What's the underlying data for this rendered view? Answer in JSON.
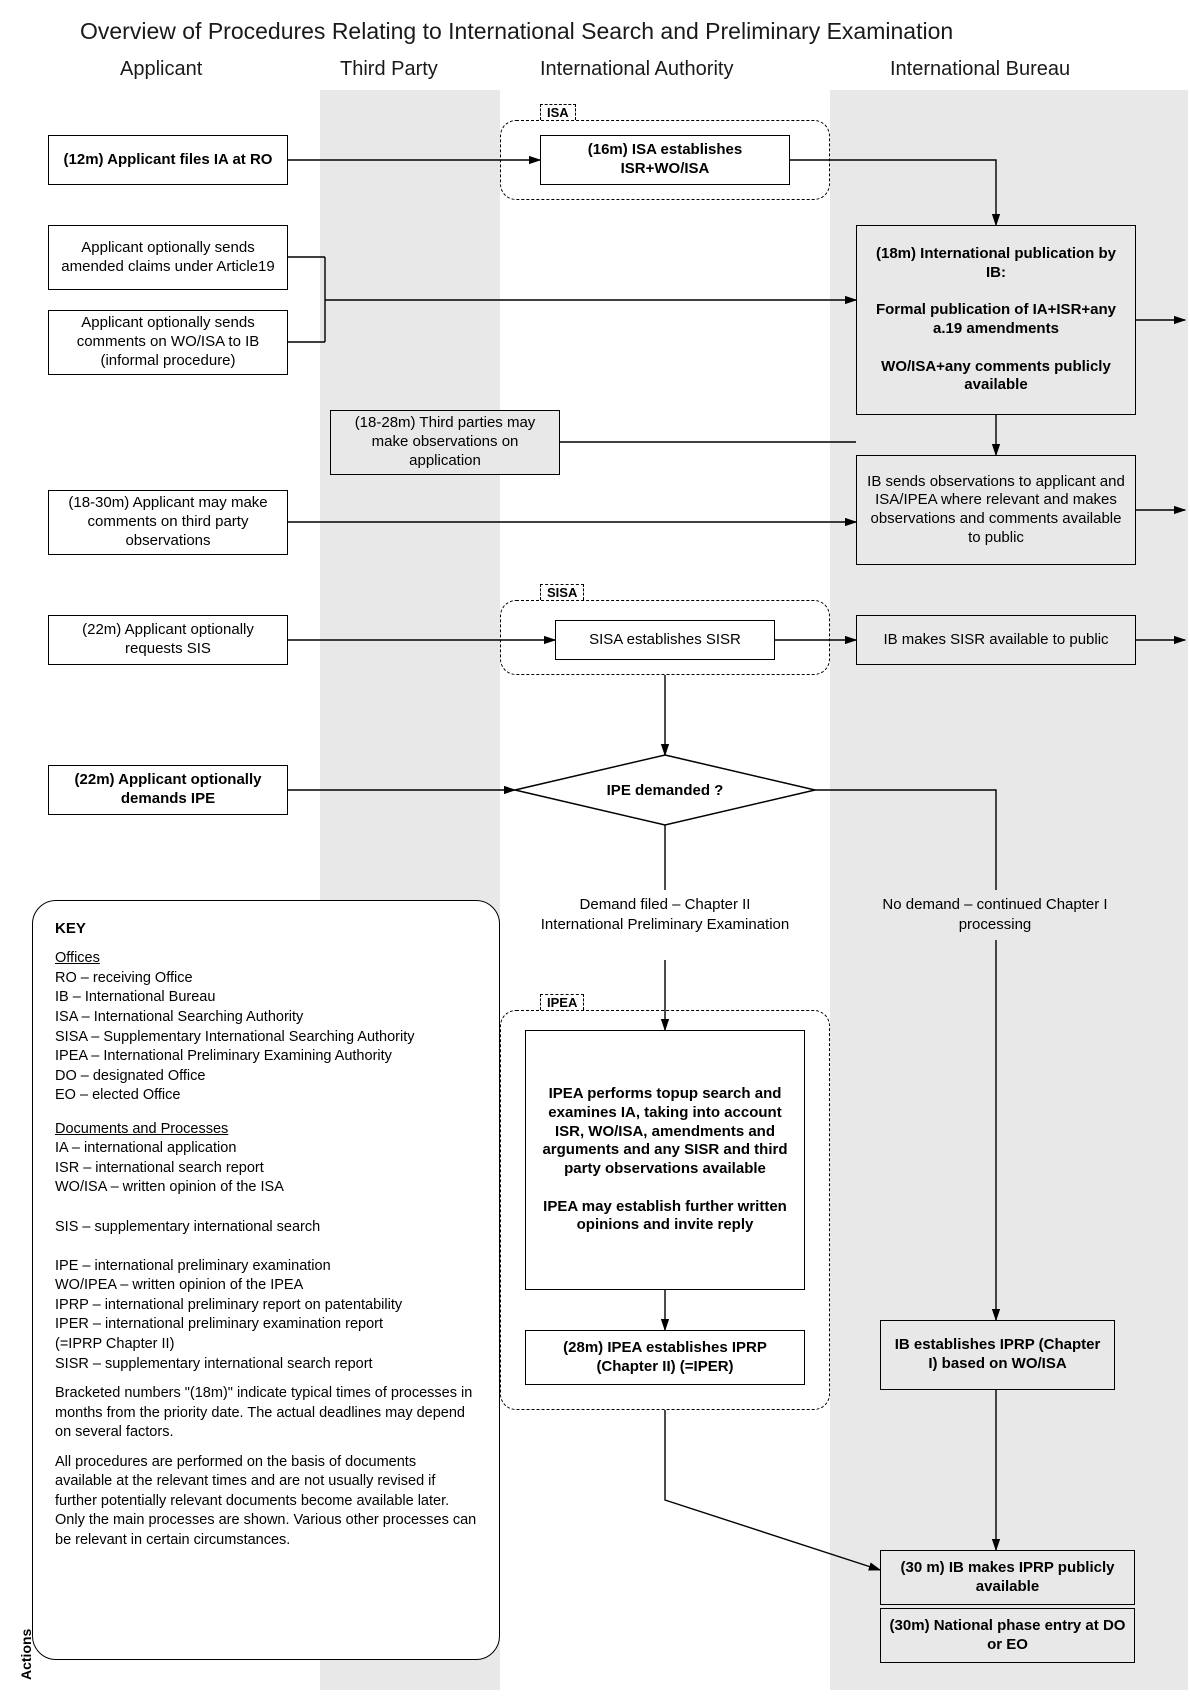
{
  "title": "Overview of Procedures Relating to International Search and Preliminary Examination",
  "columns": {
    "applicant": "Applicant",
    "thirdParty": "Third Party",
    "intlAuthority": "International Authority",
    "intlBureau": "International Bureau"
  },
  "colBg": {
    "applicant": "#ffffff",
    "thirdParty": "#e8e8e8",
    "intlAuthority": "#ffffff",
    "intlBureau": "#e8e8e8"
  },
  "tabs": {
    "isa": "ISA",
    "sisa": "SISA",
    "ipea": "IPEA"
  },
  "nodes": {
    "filesIA": "(12m) Applicant files IA at RO",
    "isaEstablishes": "(16m) ISA establishes ISR+WO/ISA",
    "publication": "(18m) International publication by IB:\n\nFormal publication of IA+ISR+any a.19 amendments\n\nWO/ISA+any comments publicly available",
    "amendedClaims": "Applicant optionally sends amended claims under Article19",
    "commentsWOISA": "Applicant optionally sends comments on WO/ISA to IB (informal procedure)",
    "thirdPartyObs": "(18-28m) Third parties may make observations on application",
    "ibSendsObs": "IB sends observations to applicant and ISA/IPEA where relevant and makes observations and comments available to public",
    "applicantComments": "(18-30m) Applicant may make comments on third party observations",
    "requestsSIS": "(22m) Applicant optionally requests SIS",
    "sisaEstablishes": "SISA establishes SISR",
    "ibSISR": "IB makes SISR available to public",
    "demandsIPE": "(22m) Applicant optionally demands IPE",
    "decision": "IPE demanded ?",
    "demandFiled": "Demand filed – Chapter II International Preliminary Examination",
    "noDemand": "No demand – continued Chapter I processing",
    "ipeaPerforms": "IPEA performs topup search and examines IA, taking into account ISR, WO/ISA, amendments and arguments and any SISR and third party observations available\n\nIPEA may establish further written opinions and invite reply",
    "ipeaIPRP": "(28m) IPEA establishes IPRP (Chapter II) (=IPER)",
    "ibIPRP": "IB establishes IPRP (Chapter I) based on WO/ISA",
    "ibMakesIPRP": "(30 m) IB makes IPRP publicly available",
    "nationalPhase": "(30m) National phase entry at DO or EO"
  },
  "key": {
    "heading": "KEY",
    "officesHeading": "Offices",
    "offices": [
      "RO – receiving Office",
      "IB – International Bureau",
      "ISA – International Searching Authority",
      "SISA – Supplementary International Searching Authority",
      "IPEA – International Preliminary Examining Authority",
      "DO – designated Office",
      "EO – elected Office"
    ],
    "docsHeading": "Documents and Processes",
    "docs": [
      "IA – international application",
      "ISR – international search report",
      "WO/ISA – written opinion of the ISA",
      "",
      "SIS – supplementary international search",
      "",
      "IPE – international preliminary examination",
      "WO/IPEA – written opinion of the IPEA",
      "IPRP – international preliminary report on patentability",
      "IPER – international preliminary examination report\n          (=IPRP Chapter II)",
      "SISR – supplementary international search report"
    ],
    "note1": "Bracketed numbers \"(18m)\" indicate typical times of processes in months from the priority date.  The actual deadlines may depend on several factors.",
    "note2": "All procedures are performed on the basis of documents available at the relevant times and are not usually revised if further potentially relevant documents become available later.  Only the main processes are shown.  Various other processes can be relevant in certain circumstances."
  },
  "actionsLabel": "Actions",
  "layout": {
    "colX": {
      "applicant": 32,
      "thirdParty": 320,
      "intlAuthority": 500,
      "intlBureau": 830
    },
    "colW": {
      "applicant": 288,
      "thirdParty": 180,
      "intlAuthority": 330,
      "intlBureau": 330
    }
  },
  "style": {
    "fontTitle": 23,
    "fontHeader": 20,
    "fontNode": 15,
    "fontKey": 14.5,
    "borderColor": "#000000",
    "dashColor": "#000000"
  }
}
